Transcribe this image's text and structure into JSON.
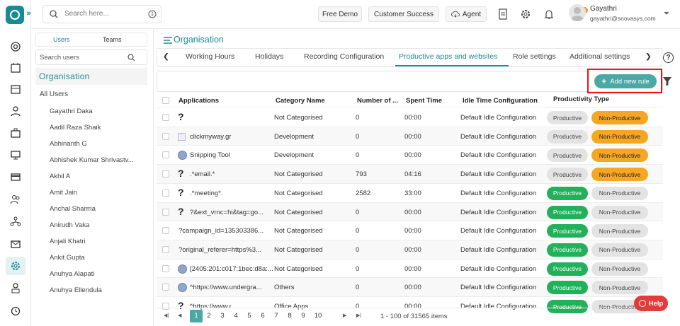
{
  "topbar": {
    "search_placeholder": "Search here...",
    "free_demo": "Free Demo",
    "customer_success": "Customer Success",
    "agent": "Agent",
    "notification_count": "11",
    "user_name": "Gayathri",
    "user_email": "gayathri@snovasys.com"
  },
  "left_panel": {
    "tabs": [
      "Users",
      "Teams"
    ],
    "search_placeholder": "Search users",
    "organisation": "Organisation",
    "all_users": "All Users",
    "users": [
      "Gayathri Daka",
      "Aadil Raza Shaik",
      "Abhinanth G",
      "Abhishek Kumar Shrivastv...",
      "Akhil A",
      "Amit Jain",
      "Anchal Sharma",
      "Anirudh Vaka",
      "Anjali Khatri",
      "Ankit Gupta",
      "Anuhya Alapati",
      "Anuhya Ellendula"
    ]
  },
  "main": {
    "page_title": "Organisation",
    "tabs": [
      "Working Hours",
      "Holidays",
      "Recording Configuration",
      "Productive apps and websites",
      "Role settings",
      "Additional settings"
    ],
    "add_button": "Add new rule",
    "columns": [
      "Applications",
      "Category Name",
      "Number of ...",
      "Spent Time",
      "Idle Time Configuration",
      "Productivity Type"
    ],
    "productive_label": "Productive",
    "non_productive_label": "Non-Productive",
    "rows": [
      {
        "icon": "question",
        "app": "",
        "category": "Not Categorised",
        "number": "0",
        "spent": "00:00",
        "idle": "Default Idle Configuration",
        "active": "non"
      },
      {
        "icon": "image",
        "app": "clickmyway.gr",
        "category": "Development",
        "number": "0",
        "spent": "00:00",
        "idle": "Default Idle Configuration",
        "active": "non"
      },
      {
        "icon": "globe",
        "app": "Snipping Tool",
        "category": "Development",
        "number": "0",
        "spent": "00:00",
        "idle": "Default Idle Configuration",
        "active": "non"
      },
      {
        "icon": "question",
        "app": ".*email.*",
        "category": "Not Categorised",
        "number": "793",
        "spent": "04:16",
        "idle": "Default Idle Configuration",
        "active": "non"
      },
      {
        "icon": "question",
        "app": ".*meeting*.",
        "category": "Not Categorised",
        "number": "2582",
        "spent": "33:00",
        "idle": "Default Idle Configuration",
        "active": "prod"
      },
      {
        "icon": "question",
        "app": "?&ext_vrnc=hi&tag=go...",
        "category": "Not Categorised",
        "number": "0",
        "spent": "00:00",
        "idle": "Default Idle Configuration",
        "active": "prod"
      },
      {
        "icon": "none",
        "app": "?campaign_id=135303386...",
        "category": "Not Categorised",
        "number": "0",
        "spent": "00:00",
        "idle": "Default Idle Configuration",
        "active": "prod"
      },
      {
        "icon": "none",
        "app": "?original_referer=https%3...",
        "category": "Not Categorised",
        "number": "0",
        "spent": "00:00",
        "idle": "Default Idle Configuration",
        "active": "prod"
      },
      {
        "icon": "globe",
        "app": "[2405:201:c017:1bec:d8a:...",
        "category": "Not Categorised",
        "number": "0",
        "spent": "00:00",
        "idle": "Default Idle Configuration",
        "active": "prod"
      },
      {
        "icon": "globe",
        "app": "^https://www.undergra...",
        "category": "Others",
        "number": "0",
        "spent": "00:00",
        "idle": "Default Idle Configuration",
        "active": "prod"
      },
      {
        "icon": "question",
        "app": "^https://www.r...",
        "category": "Office Apps",
        "number": "0",
        "spent": "00:00",
        "idle": "Default Idle Configuration",
        "active": "prod"
      }
    ],
    "pager": {
      "pages": [
        "1",
        "2",
        "3",
        "4",
        "5",
        "6",
        "7",
        "8",
        "9",
        "10"
      ],
      "info": "1 - 100 of 31565 items"
    },
    "help": "Help"
  },
  "colors": {
    "accent": "#1c8a94",
    "button": "#4aa8a5",
    "productive": "#22b05a",
    "non_productive": "#f6a623",
    "highlight": "#e31717"
  }
}
